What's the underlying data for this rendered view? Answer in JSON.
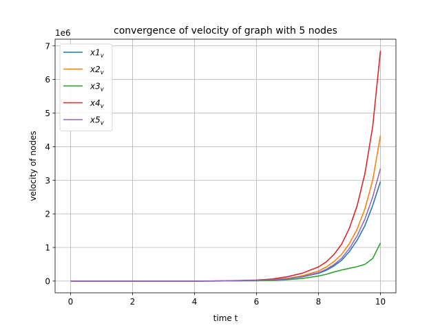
{
  "chart_data": {
    "type": "line",
    "title": "convergence of velocity of graph with 5 nodes",
    "xlabel": "time t",
    "ylabel": "velocity of nodes",
    "y_multiplier_label": "1e6",
    "xlim": [
      -0.5,
      10.5
    ],
    "ylim": [
      -0.35,
      7.2
    ],
    "x_ticks": [
      0,
      2,
      4,
      6,
      8,
      10
    ],
    "y_ticks": [
      0,
      1,
      2,
      3,
      4,
      5,
      6,
      7
    ],
    "grid": true,
    "legend_position": "top-left",
    "x": [
      0,
      1,
      2,
      3,
      4,
      5,
      6,
      6.5,
      7,
      7.5,
      8,
      8.25,
      8.5,
      8.75,
      9,
      9.25,
      9.5,
      9.75,
      10
    ],
    "series": [
      {
        "name": "x1",
        "subscript": "v",
        "color": "#1f77b4",
        "values": [
          0,
          0,
          0,
          0,
          0,
          0.005,
          0.02,
          0.035,
          0.07,
          0.13,
          0.23,
          0.32,
          0.45,
          0.62,
          0.88,
          1.22,
          1.65,
          2.25,
          2.96
        ]
      },
      {
        "name": "x2",
        "subscript": "v",
        "color": "#ff7f0e",
        "values": [
          0,
          0,
          0,
          0,
          0,
          0.005,
          0.02,
          0.04,
          0.08,
          0.16,
          0.3,
          0.42,
          0.58,
          0.8,
          1.12,
          1.55,
          2.15,
          3.0,
          4.33
        ]
      },
      {
        "name": "x3",
        "subscript": "v",
        "color": "#2ca02c",
        "values": [
          0,
          0,
          0,
          0,
          0,
          0.003,
          0.01,
          0.02,
          0.04,
          0.08,
          0.15,
          0.2,
          0.27,
          0.33,
          0.38,
          0.43,
          0.5,
          0.67,
          1.13
        ]
      },
      {
        "name": "x4",
        "subscript": "v",
        "color": "#d62728",
        "values": [
          0,
          0,
          0,
          0,
          0,
          0.008,
          0.03,
          0.06,
          0.13,
          0.24,
          0.42,
          0.57,
          0.79,
          1.1,
          1.58,
          2.25,
          3.2,
          4.6,
          6.85
        ]
      },
      {
        "name": "x5",
        "subscript": "v",
        "color": "#9467bd",
        "values": [
          0,
          0,
          0,
          0,
          0,
          0.005,
          0.02,
          0.04,
          0.07,
          0.14,
          0.25,
          0.35,
          0.49,
          0.68,
          0.97,
          1.35,
          1.85,
          2.5,
          3.35
        ]
      }
    ]
  }
}
